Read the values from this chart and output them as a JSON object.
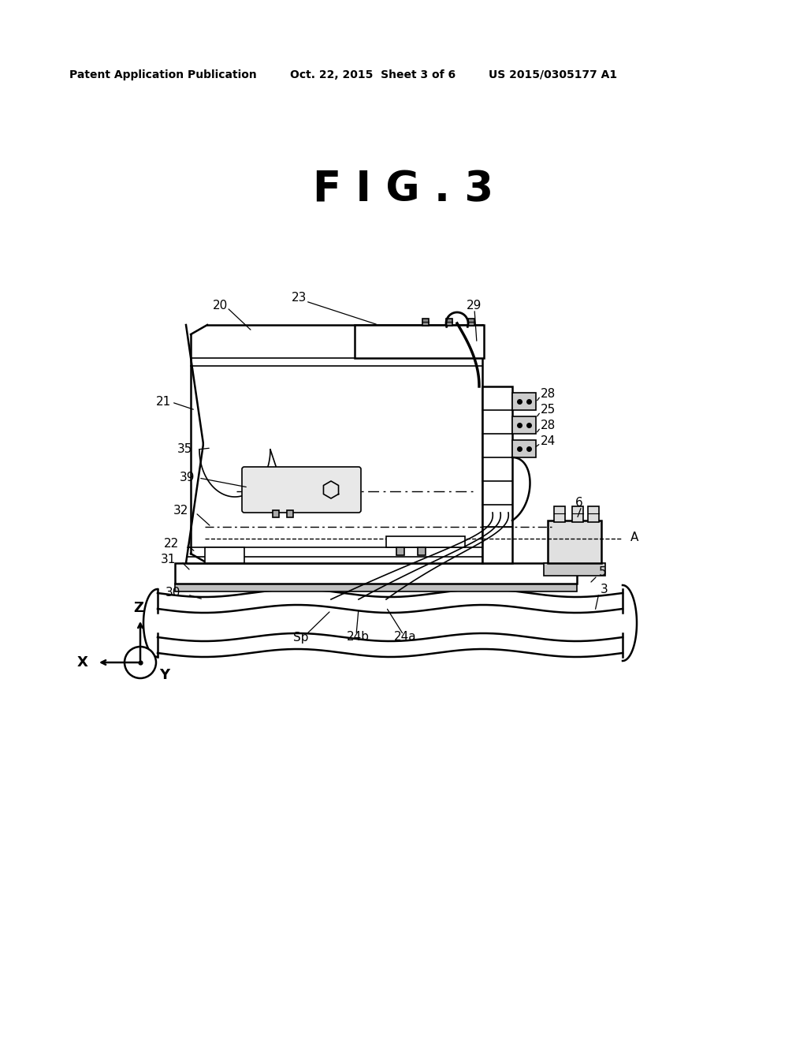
{
  "background_color": "#ffffff",
  "header_left": "Patent Application Publication",
  "header_mid": "Oct. 22, 2015  Sheet 3 of 6",
  "header_right": "US 2015/0305177 A1",
  "fig_title": "F I G . 3"
}
